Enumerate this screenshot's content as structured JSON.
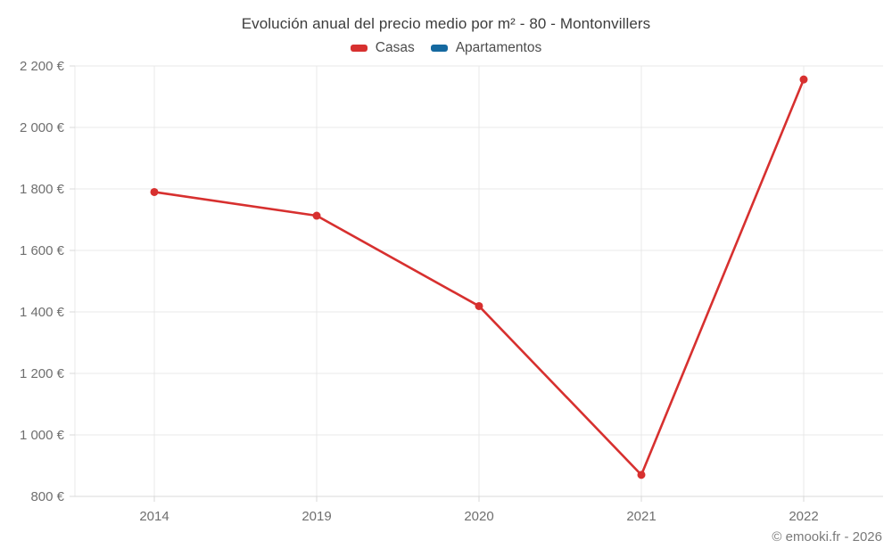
{
  "title": "Evolución anual del precio medio por m² - 80 - Montonvillers",
  "legend": {
    "items": [
      {
        "label": "Casas",
        "color": "#d7302f"
      },
      {
        "label": "Apartamentos",
        "color": "#1569a0"
      }
    ]
  },
  "footer": "© emooki.fr - 2026",
  "chart_data": {
    "type": "line",
    "title": "Evolución anual del precio medio por m² - 80 - Montonvillers",
    "categories": [
      "2014",
      "2019",
      "2020",
      "2021",
      "2022"
    ],
    "series": [
      {
        "name": "Casas",
        "color": "#d7302f",
        "values": [
          1790,
          1713,
          1419,
          870,
          2156
        ]
      },
      {
        "name": "Apartamentos",
        "color": "#1569a0",
        "values": []
      }
    ],
    "xlabel": "",
    "ylabel": "",
    "ylim": [
      800,
      2200
    ],
    "ytick_step": 200,
    "ytick_suffix": " €",
    "grid": true,
    "legend_position": "top",
    "colors": {
      "grid": "#e8e8e8",
      "axis": "#d9d9d9",
      "tick_label": "#6f6f6f",
      "title": "#3d3d3d",
      "legend_label": "#4d4d4d",
      "footer": "#7a7a7a",
      "background": "#ffffff"
    }
  }
}
